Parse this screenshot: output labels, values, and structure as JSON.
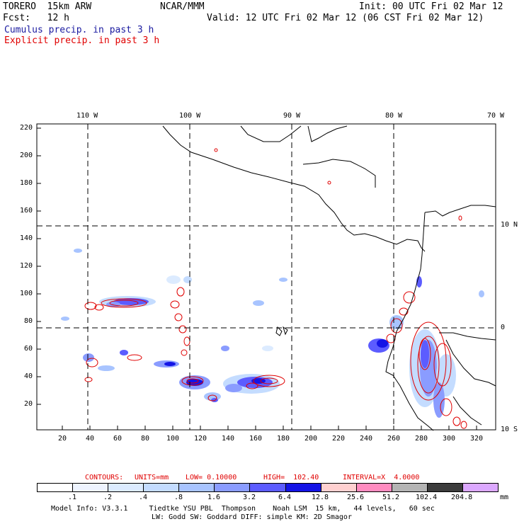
{
  "header": {
    "model": "TORERO  15km ARW",
    "center": "NCAR/MMM",
    "init": "Init: 00 UTC Fri 02 Mar 12",
    "fcst": "Fcst:   12 h",
    "valid": "Valid: 12 UTC Fri 02 Mar 12 (06 CST Fri 02 Mar 12)",
    "cumulus": "Cumulus precip. in past 3 h",
    "explicit": "Explicit precip. in past 3 h"
  },
  "map": {
    "top_lon_labels": [
      "110 W",
      "100 W",
      "90 W",
      "80 W",
      "70 W"
    ],
    "right_lat_labels": [
      "10 N",
      "0",
      "10 S"
    ],
    "y_ticks": [
      "220",
      "200",
      "180",
      "160",
      "140",
      "120",
      "100",
      "80",
      "60",
      "40",
      "20"
    ],
    "x_ticks": [
      "20",
      "40",
      "60",
      "80",
      "100",
      "120",
      "140",
      "160",
      "180",
      "200",
      "220",
      "240",
      "260",
      "280",
      "300",
      "320"
    ]
  },
  "contour_info": {
    "contours": "CONTOURS:",
    "units": "UNITS=mm",
    "low": "LOW= 0.10000",
    "high": "HIGH=  102.40",
    "interval": "INTERVAL=X  4.0000"
  },
  "colorbar": {
    "labels": [
      ".1",
      ".2",
      ".4",
      ".8",
      "1.6",
      "3.2",
      "6.4",
      "12.8",
      "25.6",
      "51.2",
      "102.4",
      "204.8"
    ],
    "unit": "mm",
    "colors": [
      "#ffffff",
      "#eef4ff",
      "#dcebff",
      "#c4dcff",
      "#a8c4ff",
      "#8a9cff",
      "#5c5cff",
      "#1414e6",
      "#ffd0d0",
      "#ff8cc0",
      "#b4b4b4",
      "#3c3c3c",
      "#dca8ff"
    ]
  },
  "footer": {
    "line1": "Model Info: V3.3.1     Tiedtke YSU PBL  Thompson    Noah LSM  15 km,   44 levels,   60 sec",
    "line2": "LW: Godd SW: Goddard DIFF: simple KM: 2D Smagor"
  }
}
